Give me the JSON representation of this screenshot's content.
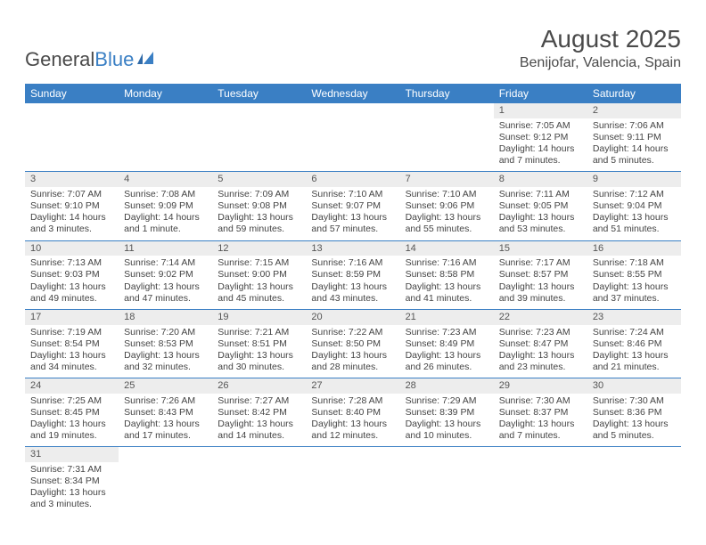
{
  "logo": {
    "part1": "General",
    "part2": "Blue"
  },
  "title": "August 2025",
  "location": "Benijofar, Valencia, Spain",
  "colors": {
    "header_bg": "#3a7fc4",
    "header_text": "#ffffff",
    "cell_border": "#3a7fc4",
    "daynum_bg": "#ededed",
    "text": "#444444"
  },
  "day_headers": [
    "Sunday",
    "Monday",
    "Tuesday",
    "Wednesday",
    "Thursday",
    "Friday",
    "Saturday"
  ],
  "weeks": [
    [
      {},
      {},
      {},
      {},
      {},
      {
        "n": "1",
        "sr": "Sunrise: 7:05 AM",
        "ss": "Sunset: 9:12 PM",
        "dl": "Daylight: 14 hours and 7 minutes."
      },
      {
        "n": "2",
        "sr": "Sunrise: 7:06 AM",
        "ss": "Sunset: 9:11 PM",
        "dl": "Daylight: 14 hours and 5 minutes."
      }
    ],
    [
      {
        "n": "3",
        "sr": "Sunrise: 7:07 AM",
        "ss": "Sunset: 9:10 PM",
        "dl": "Daylight: 14 hours and 3 minutes."
      },
      {
        "n": "4",
        "sr": "Sunrise: 7:08 AM",
        "ss": "Sunset: 9:09 PM",
        "dl": "Daylight: 14 hours and 1 minute."
      },
      {
        "n": "5",
        "sr": "Sunrise: 7:09 AM",
        "ss": "Sunset: 9:08 PM",
        "dl": "Daylight: 13 hours and 59 minutes."
      },
      {
        "n": "6",
        "sr": "Sunrise: 7:10 AM",
        "ss": "Sunset: 9:07 PM",
        "dl": "Daylight: 13 hours and 57 minutes."
      },
      {
        "n": "7",
        "sr": "Sunrise: 7:10 AM",
        "ss": "Sunset: 9:06 PM",
        "dl": "Daylight: 13 hours and 55 minutes."
      },
      {
        "n": "8",
        "sr": "Sunrise: 7:11 AM",
        "ss": "Sunset: 9:05 PM",
        "dl": "Daylight: 13 hours and 53 minutes."
      },
      {
        "n": "9",
        "sr": "Sunrise: 7:12 AM",
        "ss": "Sunset: 9:04 PM",
        "dl": "Daylight: 13 hours and 51 minutes."
      }
    ],
    [
      {
        "n": "10",
        "sr": "Sunrise: 7:13 AM",
        "ss": "Sunset: 9:03 PM",
        "dl": "Daylight: 13 hours and 49 minutes."
      },
      {
        "n": "11",
        "sr": "Sunrise: 7:14 AM",
        "ss": "Sunset: 9:02 PM",
        "dl": "Daylight: 13 hours and 47 minutes."
      },
      {
        "n": "12",
        "sr": "Sunrise: 7:15 AM",
        "ss": "Sunset: 9:00 PM",
        "dl": "Daylight: 13 hours and 45 minutes."
      },
      {
        "n": "13",
        "sr": "Sunrise: 7:16 AM",
        "ss": "Sunset: 8:59 PM",
        "dl": "Daylight: 13 hours and 43 minutes."
      },
      {
        "n": "14",
        "sr": "Sunrise: 7:16 AM",
        "ss": "Sunset: 8:58 PM",
        "dl": "Daylight: 13 hours and 41 minutes."
      },
      {
        "n": "15",
        "sr": "Sunrise: 7:17 AM",
        "ss": "Sunset: 8:57 PM",
        "dl": "Daylight: 13 hours and 39 minutes."
      },
      {
        "n": "16",
        "sr": "Sunrise: 7:18 AM",
        "ss": "Sunset: 8:55 PM",
        "dl": "Daylight: 13 hours and 37 minutes."
      }
    ],
    [
      {
        "n": "17",
        "sr": "Sunrise: 7:19 AM",
        "ss": "Sunset: 8:54 PM",
        "dl": "Daylight: 13 hours and 34 minutes."
      },
      {
        "n": "18",
        "sr": "Sunrise: 7:20 AM",
        "ss": "Sunset: 8:53 PM",
        "dl": "Daylight: 13 hours and 32 minutes."
      },
      {
        "n": "19",
        "sr": "Sunrise: 7:21 AM",
        "ss": "Sunset: 8:51 PM",
        "dl": "Daylight: 13 hours and 30 minutes."
      },
      {
        "n": "20",
        "sr": "Sunrise: 7:22 AM",
        "ss": "Sunset: 8:50 PM",
        "dl": "Daylight: 13 hours and 28 minutes."
      },
      {
        "n": "21",
        "sr": "Sunrise: 7:23 AM",
        "ss": "Sunset: 8:49 PM",
        "dl": "Daylight: 13 hours and 26 minutes."
      },
      {
        "n": "22",
        "sr": "Sunrise: 7:23 AM",
        "ss": "Sunset: 8:47 PM",
        "dl": "Daylight: 13 hours and 23 minutes."
      },
      {
        "n": "23",
        "sr": "Sunrise: 7:24 AM",
        "ss": "Sunset: 8:46 PM",
        "dl": "Daylight: 13 hours and 21 minutes."
      }
    ],
    [
      {
        "n": "24",
        "sr": "Sunrise: 7:25 AM",
        "ss": "Sunset: 8:45 PM",
        "dl": "Daylight: 13 hours and 19 minutes."
      },
      {
        "n": "25",
        "sr": "Sunrise: 7:26 AM",
        "ss": "Sunset: 8:43 PM",
        "dl": "Daylight: 13 hours and 17 minutes."
      },
      {
        "n": "26",
        "sr": "Sunrise: 7:27 AM",
        "ss": "Sunset: 8:42 PM",
        "dl": "Daylight: 13 hours and 14 minutes."
      },
      {
        "n": "27",
        "sr": "Sunrise: 7:28 AM",
        "ss": "Sunset: 8:40 PM",
        "dl": "Daylight: 13 hours and 12 minutes."
      },
      {
        "n": "28",
        "sr": "Sunrise: 7:29 AM",
        "ss": "Sunset: 8:39 PM",
        "dl": "Daylight: 13 hours and 10 minutes."
      },
      {
        "n": "29",
        "sr": "Sunrise: 7:30 AM",
        "ss": "Sunset: 8:37 PM",
        "dl": "Daylight: 13 hours and 7 minutes."
      },
      {
        "n": "30",
        "sr": "Sunrise: 7:30 AM",
        "ss": "Sunset: 8:36 PM",
        "dl": "Daylight: 13 hours and 5 minutes."
      }
    ],
    [
      {
        "n": "31",
        "sr": "Sunrise: 7:31 AM",
        "ss": "Sunset: 8:34 PM",
        "dl": "Daylight: 13 hours and 3 minutes."
      },
      {},
      {},
      {},
      {},
      {},
      {}
    ]
  ]
}
